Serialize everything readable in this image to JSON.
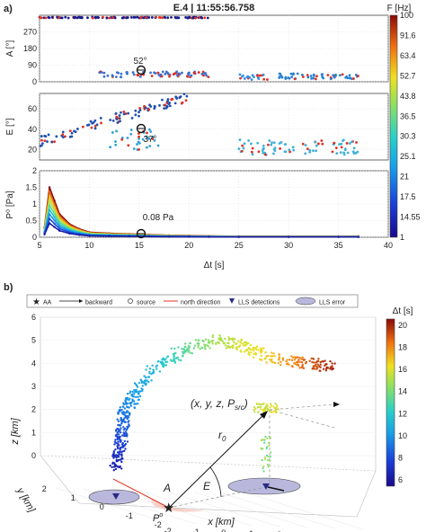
{
  "panel_a": {
    "letter": "a)",
    "title": "E.4  |  11:55:56.758",
    "colorbar_label": "F [Hz]",
    "colorbar_ticks": [
      "100",
      "91.6",
      "63.4",
      "52.7",
      "43.8",
      "36.5",
      "30.3",
      "25.1",
      "21",
      "17.5",
      "14.55",
      "1"
    ],
    "xlabel": "Δt [s]",
    "annotations": {
      "azimuth": "52°",
      "elevation": "37°",
      "pressure": "0.08 Pa"
    }
  },
  "panel_b": {
    "letter": "b)",
    "legend": [
      "AA",
      "backward",
      "source",
      "north direction",
      "LLS detections",
      "LLS error"
    ],
    "colorbar_label": "Δt [s]",
    "colorbar_ticks": [
      "20",
      "18",
      "16",
      "14",
      "12",
      "10",
      "8",
      "6"
    ],
    "axis_labels": {
      "x": "x [km]",
      "y": "y [km]",
      "z": "z [km]"
    },
    "x_ticks": [
      "-2",
      "-1",
      "0",
      "1",
      "2",
      "3",
      "4",
      "5"
    ],
    "y_ticks": [
      "-2",
      "-1",
      "0",
      "1",
      "2"
    ],
    "z_ticks": [
      "0",
      "1",
      "2",
      "3",
      "4",
      "5",
      "6"
    ],
    "annotations": {
      "source_vector": "(x, y, z, P",
      "source_sub": "src",
      "source_close": ")",
      "range": "r",
      "range_sub": "0",
      "azimuth": "A",
      "elevation": "E",
      "origin": "P",
      "origin_sup": "o"
    }
  },
  "colors": {
    "accent_line": "#e03020",
    "lls_fill": "#b9b8dc",
    "lls_marker": "#2a2a8a"
  },
  "chart_data": [
    {
      "type": "scatter",
      "title": "E.4  |  11:55:56.758",
      "ylabel": "A [°]",
      "y_ticks": [
        0,
        90,
        180,
        270
      ],
      "x_ticks": [
        5,
        10,
        15,
        20,
        25,
        30,
        35,
        40
      ],
      "xlim": [
        5,
        40
      ],
      "ylim": [
        0,
        360
      ],
      "clusters": [
        {
          "x": [
            5,
            22
          ],
          "y": [
            345,
            350
          ],
          "color": "#1a1a8a"
        },
        {
          "x": [
            11,
            22
          ],
          "y": [
            25,
            55
          ],
          "color": "#3a70d0"
        },
        {
          "x": [
            25,
            28
          ],
          "y": [
            10,
            40
          ],
          "color": "#3a90e0"
        },
        {
          "x": [
            29,
            37
          ],
          "y": [
            15,
            45
          ],
          "color": "#2a80d0"
        }
      ],
      "marker": {
        "x": 15.3,
        "y": 52,
        "label": "52°"
      }
    },
    {
      "type": "scatter",
      "ylabel": "E [°]",
      "y_ticks": [
        20,
        40,
        60
      ],
      "xlim": [
        5,
        40
      ],
      "ylim": [
        10,
        75
      ],
      "clusters": [
        {
          "x": [
            5,
            20
          ],
          "y": [
            28,
            72
          ],
          "color": "#2050b0"
        },
        {
          "x": [
            12,
            17
          ],
          "y": [
            20,
            40
          ],
          "color": "#30a0d0"
        },
        {
          "x": [
            25,
            37
          ],
          "y": [
            15,
            30
          ],
          "color": "#40b0d8"
        }
      ],
      "marker": {
        "x": 15.3,
        "y": 37,
        "label": "37°"
      }
    },
    {
      "type": "line",
      "ylabel": "P⁰ [Pa]",
      "y_ticks": [
        0,
        0.5,
        1,
        1.5,
        2
      ],
      "xlim": [
        5,
        40
      ],
      "ylim": [
        0,
        2
      ],
      "series": {
        "x": [
          5.5,
          6,
          6.5,
          7,
          8,
          9,
          10,
          12,
          14,
          16,
          18,
          20,
          22,
          25,
          30,
          35,
          37
        ],
        "y": [
          0.3,
          1.5,
          1.1,
          0.7,
          0.4,
          0.25,
          0.15,
          0.12,
          0.1,
          0.08,
          0.06,
          0.05,
          0.04,
          0.03,
          0.03,
          0.03,
          0.03
        ]
      },
      "marker": {
        "x": 15.3,
        "y": 0.08,
        "label": "0.08 Pa"
      }
    },
    {
      "type": "scatter",
      "xlabel": "x [km]",
      "ylabel": "y [km]",
      "zlabel": "z [km]",
      "xlim": [
        -2,
        5
      ],
      "ylim": [
        -2,
        2
      ],
      "zlim": [
        0,
        6
      ],
      "clim": [
        5,
        21
      ],
      "path": [
        {
          "x": -1.4,
          "y": 0.0,
          "z": 0.8,
          "t": 6
        },
        {
          "x": -1.2,
          "y": 0.0,
          "z": 1.5,
          "t": 7
        },
        {
          "x": -1.0,
          "y": 0.0,
          "z": 2.2,
          "t": 8
        },
        {
          "x": -0.9,
          "y": 0.0,
          "z": 2.9,
          "t": 9
        },
        {
          "x": -0.8,
          "y": 0.0,
          "z": 3.3,
          "t": 10
        },
        {
          "x": -0.5,
          "y": 0.0,
          "z": 3.9,
          "t": 12
        },
        {
          "x": 0.0,
          "y": 0.0,
          "z": 4.4,
          "t": 13
        },
        {
          "x": 0.6,
          "y": 0.0,
          "z": 4.6,
          "t": 15
        },
        {
          "x": 1.3,
          "y": 0.0,
          "z": 4.4,
          "t": 17
        },
        {
          "x": 2.0,
          "y": 0.0,
          "z": 4.1,
          "t": 19
        },
        {
          "x": 2.6,
          "y": 0.0,
          "z": 4.0,
          "t": 20.5
        }
      ]
    }
  ]
}
